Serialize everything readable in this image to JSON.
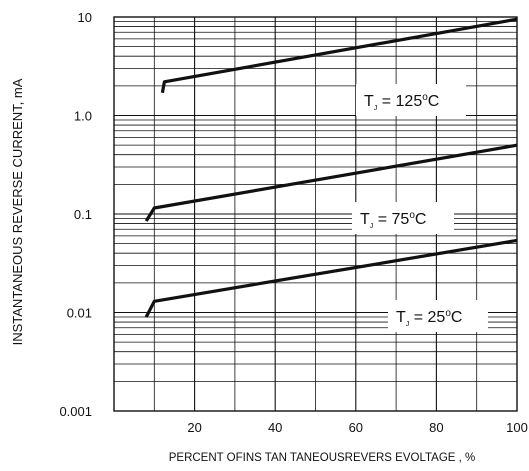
{
  "chart_data": {
    "type": "line",
    "title": "",
    "xlabel": "PERCENT OFINS TAN TANEOUSREVERS EVOLTAGE , %",
    "ylabel": "INSTANTANEOUS REVERSE CURRENT, mA",
    "xlim": [
      0,
      100
    ],
    "ylim": [
      0.001,
      10
    ],
    "y_scale": "log",
    "grid": true,
    "x_ticks": [
      20,
      40,
      60,
      80,
      100
    ],
    "x_tick_labels": [
      "20",
      "40",
      "60",
      "80",
      "100"
    ],
    "y_ticks": [
      10,
      1,
      0.1,
      0.01,
      0.001
    ],
    "y_tick_labels": [
      "10",
      "1.0",
      "0.1",
      "0.01",
      "0.001"
    ],
    "series": [
      {
        "label_main": "T",
        "label_sub": "J",
        "label_rest": "= 125",
        "label_sup": "o",
        "label_unit": "C",
        "x": [
          12,
          12.5,
          100
        ],
        "y": [
          1.7,
          2.2,
          9.5
        ]
      },
      {
        "label_main": "T",
        "label_sub": "J",
        "label_rest": "= 75",
        "label_sup": "o",
        "label_unit": "C",
        "x": [
          8,
          10,
          100
        ],
        "y": [
          0.085,
          0.115,
          0.5
        ]
      },
      {
        "label_main": "T",
        "label_sub": "J",
        "label_rest": "= 25",
        "label_sup": "o",
        "label_unit": "C",
        "x": [
          8,
          10,
          100
        ],
        "y": [
          0.009,
          0.013,
          0.054
        ]
      }
    ],
    "colors": {
      "line": "#111111",
      "grid": "#111111",
      "background": "#ffffff"
    }
  }
}
